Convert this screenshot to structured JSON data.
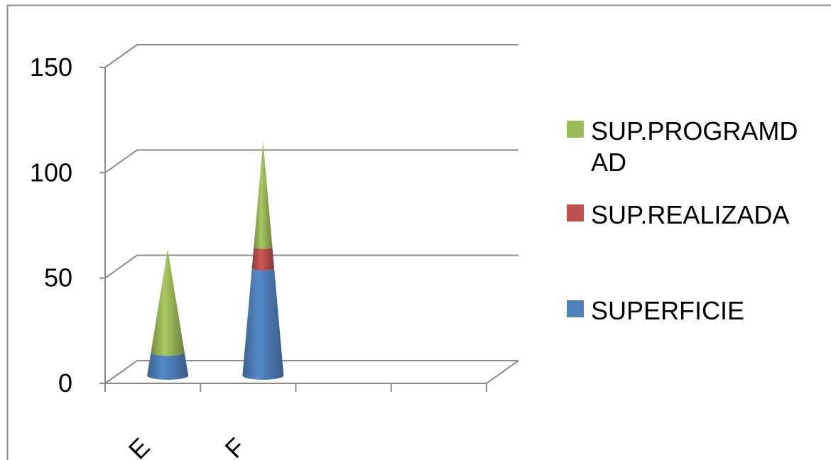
{
  "chart_data": {
    "type": "bar",
    "variant": "3d-cone-stacked",
    "title": "",
    "xlabel": "",
    "ylabel": "",
    "categories": [
      "E",
      "F"
    ],
    "ylim": [
      0,
      150
    ],
    "yticks": [
      "0",
      "50",
      "100",
      "150"
    ],
    "grid": true,
    "legend_position": "right",
    "series": [
      {
        "name": "SUPERFICIE",
        "color": "#4F81BD",
        "values": [
          11,
          51
        ]
      },
      {
        "name": "SUP.REALIZADA",
        "color": "#C0504D",
        "values": [
          0,
          10
        ]
      },
      {
        "name": "SUP.PROGRAMD AD",
        "color": "#9BBB59",
        "values": [
          49,
          50
        ]
      }
    ],
    "legend": [
      {
        "lines": [
          "SUP.PROGRAMD",
          "AD"
        ],
        "color": "#9BBB59"
      },
      {
        "lines": [
          "SUP.REALIZADA"
        ],
        "color": "#C0504D"
      },
      {
        "lines": [
          "SUPERFICIE"
        ],
        "color": "#4F81BD"
      }
    ]
  }
}
